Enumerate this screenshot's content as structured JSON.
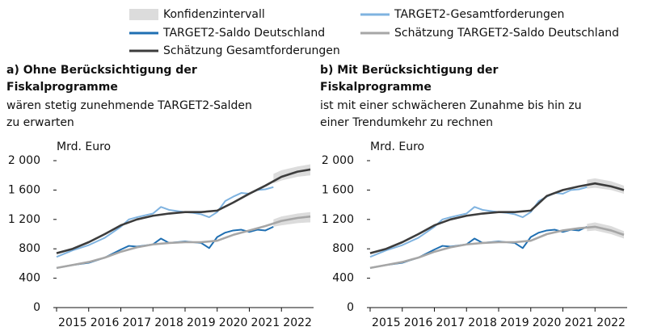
{
  "legend": [
    {
      "name": "Konfidenzintervall",
      "color": "#dcdcdc"
    },
    {
      "name": "TARGET2-Gesamtforderungen",
      "color": "#7fb3e0"
    },
    {
      "name": "TARGET2-Saldo Deutschland",
      "color": "#1f6fb2"
    },
    {
      "name": "Schätzung TARGET2-Saldo Deutschland",
      "color": "#a6a6a6"
    },
    {
      "name": "Schätzung Gesamtforderungen",
      "color": "#3c3c3c"
    }
  ],
  "chart_data": [
    {
      "type": "line",
      "title": [
        "a) Ohne Berücksichtigung der",
        "Fiskalprogramme"
      ],
      "subtitle": [
        "wären stetig zunehmende TARGET2-Salden",
        "zu erwarten"
      ],
      "ylabel": "Mrd. Euro",
      "ylim": [
        0,
        2000
      ],
      "yticks": [
        0,
        400,
        800,
        {
          "value": 1200,
          "label": "1 200"
        },
        {
          "value": 1600,
          "label": "1 600"
        },
        {
          "value": 2000,
          "label": "2 000"
        }
      ],
      "xlim": [
        2015,
        2023
      ],
      "xticks": [
        2015,
        2016,
        2017,
        2018,
        2019,
        2020,
        2021,
        2022
      ],
      "series": [
        {
          "bands": [
            {
              "x": [
                2021.75,
                2022,
                2022.5,
                2022.9
              ],
              "lower": [
                1690,
                1730,
                1780,
                1800
              ],
              "upper": [
                1820,
                1870,
                1920,
                1950
              ]
            },
            {
              "x": [
                2021.75,
                2022,
                2022.5,
                2022.9
              ],
              "lower": [
                1100,
                1120,
                1150,
                1160
              ],
              "upper": [
                1200,
                1240,
                1280,
                1300
              ]
            }
          ]
        },
        {
          "x": [
            2015,
            2015.5,
            2016,
            2016.5,
            2017,
            2017.25,
            2017.5,
            2018,
            2018.25,
            2018.5,
            2019,
            2019.25,
            2019.5,
            2019.75,
            2020,
            2020.25,
            2020.5,
            2020.75,
            2021,
            2021.25,
            2021.5,
            2021.75
          ],
          "values": [
            690,
            780,
            850,
            950,
            1100,
            1200,
            1230,
            1280,
            1370,
            1330,
            1300,
            1290,
            1270,
            1230,
            1300,
            1450,
            1510,
            1560,
            1550,
            1600,
            1610,
            1640
          ]
        },
        {
          "x": [
            2015,
            2015.5,
            2016,
            2016.5,
            2017,
            2017.25,
            2017.5,
            2018,
            2018.25,
            2018.5,
            2019,
            2019.5,
            2019.75,
            2020,
            2020.25,
            2020.5,
            2020.75,
            2021,
            2021.25,
            2021.5,
            2021.75
          ],
          "values": [
            540,
            580,
            610,
            680,
            790,
            840,
            830,
            860,
            940,
            880,
            900,
            880,
            810,
            960,
            1020,
            1050,
            1060,
            1030,
            1060,
            1050,
            1100
          ]
        },
        {
          "x": [
            2015,
            2015.5,
            2016,
            2016.5,
            2017,
            2017.5,
            2018,
            2018.5,
            2019,
            2019.5,
            2020,
            2020.5,
            2021,
            2021.5,
            2022,
            2022.5,
            2022.9
          ],
          "values": [
            540,
            580,
            620,
            680,
            760,
            820,
            860,
            880,
            890,
            890,
            910,
            990,
            1050,
            1110,
            1180,
            1220,
            1240
          ]
        },
        {
          "x": [
            2015,
            2015.5,
            2016,
            2016.5,
            2017,
            2017.5,
            2018,
            2018.5,
            2019,
            2019.5,
            2020,
            2020.5,
            2021,
            2021.5,
            2022,
            2022.5,
            2022.9
          ],
          "values": [
            740,
            800,
            890,
            1000,
            1120,
            1200,
            1250,
            1280,
            1300,
            1300,
            1320,
            1430,
            1550,
            1660,
            1780,
            1850,
            1880
          ]
        }
      ]
    },
    {
      "type": "line",
      "title": [
        "b) Mit Berücksichtigung der",
        "Fiskalprogramme"
      ],
      "subtitle": [
        "ist mit einer schwächeren Zunahme bis hin zu",
        "einer Trendumkehr zu rechnen"
      ],
      "ylabel": "Mrd. Euro",
      "ylim": [
        0,
        2000
      ],
      "yticks": [
        0,
        400,
        800,
        {
          "value": 1200,
          "label": "1 200"
        },
        {
          "value": 1600,
          "label": "1 600"
        },
        {
          "value": 2000,
          "label": "2 000"
        }
      ],
      "xlim": [
        2015,
        2023
      ],
      "xticks": [
        2015,
        2016,
        2017,
        2018,
        2019,
        2020,
        2021,
        2022
      ],
      "series": [
        {
          "bands": [
            {
              "x": [
                2021.75,
                2022,
                2022.5,
                2022.9
              ],
              "lower": [
                1620,
                1630,
                1600,
                1550
              ],
              "upper": [
                1740,
                1760,
                1720,
                1660
              ]
            },
            {
              "x": [
                2021.75,
                2022,
                2022.5,
                2022.9
              ],
              "lower": [
                1040,
                1050,
                1000,
                940
              ],
              "upper": [
                1140,
                1160,
                1110,
                1040
              ]
            }
          ]
        },
        {
          "x": [
            2015,
            2015.5,
            2016,
            2016.5,
            2017,
            2017.25,
            2017.5,
            2018,
            2018.25,
            2018.5,
            2019,
            2019.25,
            2019.5,
            2019.75,
            2020,
            2020.25,
            2020.5,
            2020.75,
            2021,
            2021.25,
            2021.5,
            2021.75
          ],
          "values": [
            690,
            780,
            850,
            950,
            1100,
            1200,
            1230,
            1280,
            1370,
            1330,
            1300,
            1290,
            1270,
            1230,
            1300,
            1450,
            1510,
            1560,
            1550,
            1600,
            1610,
            1640
          ]
        },
        {
          "x": [
            2015,
            2015.5,
            2016,
            2016.5,
            2017,
            2017.25,
            2017.5,
            2018,
            2018.25,
            2018.5,
            2019,
            2019.5,
            2019.75,
            2020,
            2020.25,
            2020.5,
            2020.75,
            2021,
            2021.25,
            2021.5,
            2021.75
          ],
          "values": [
            540,
            580,
            610,
            680,
            790,
            840,
            830,
            860,
            940,
            880,
            900,
            880,
            810,
            960,
            1020,
            1050,
            1060,
            1030,
            1060,
            1050,
            1100
          ]
        },
        {
          "x": [
            2015,
            2015.5,
            2016,
            2016.5,
            2017,
            2017.5,
            2018,
            2018.5,
            2019,
            2019.5,
            2020,
            2020.5,
            2021,
            2021.5,
            2022,
            2022.5,
            2022.9
          ],
          "values": [
            540,
            580,
            620,
            680,
            760,
            820,
            860,
            880,
            890,
            890,
            910,
            1000,
            1050,
            1080,
            1100,
            1050,
            990
          ]
        },
        {
          "x": [
            2015,
            2015.5,
            2016,
            2016.5,
            2017,
            2017.5,
            2018,
            2018.5,
            2019,
            2019.5,
            2020,
            2020.5,
            2021,
            2021.5,
            2022,
            2022.5,
            2022.9
          ],
          "values": [
            740,
            800,
            890,
            1000,
            1120,
            1200,
            1250,
            1280,
            1300,
            1300,
            1320,
            1520,
            1600,
            1650,
            1690,
            1650,
            1600
          ]
        }
      ]
    }
  ]
}
